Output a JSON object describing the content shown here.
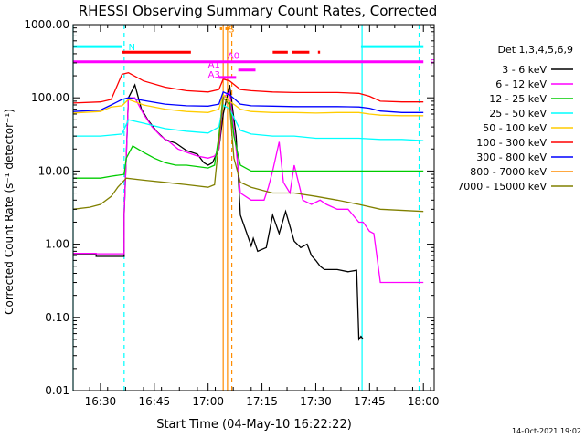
{
  "chart_data": {
    "type": "line",
    "title": "RHESSI Observing Summary Count Rates, Corrected",
    "xlabel": "Start Time (04-May-10 16:22:22)",
    "ylabel": "Corrected Count Rate (s⁻¹ detector⁻¹)",
    "y_scale": "log",
    "ylim": [
      0.01,
      1000
    ],
    "xlim": [
      16.373,
      18.05
    ],
    "x_ticks": [
      16.5,
      16.75,
      17.0,
      17.25,
      17.5,
      17.75,
      18.0
    ],
    "x_tick_labels": [
      "16:30",
      "16:45",
      "17:00",
      "17:15",
      "17:30",
      "17:45",
      "18:00"
    ],
    "y_ticks": [
      0.01,
      0.1,
      1,
      10,
      100,
      1000
    ],
    "y_tick_labels": [
      "0.01",
      "0.10",
      "1.00",
      "10.00",
      "100.00",
      "1000.00"
    ],
    "grid": false,
    "legend_placement": "right",
    "legend_title": "Det 1,3,4,5,6,9",
    "series": [
      {
        "name": "3 - 6 keV",
        "color": "#000000",
        "x": [
          16.373,
          16.48,
          16.48,
          16.61,
          16.61,
          16.63,
          16.66,
          16.69,
          16.72,
          16.76,
          16.8,
          16.85,
          16.9,
          16.95,
          16.98,
          17.0,
          17.02,
          17.05,
          17.07,
          17.1,
          17.13,
          17.15,
          17.2,
          17.21,
          17.23,
          17.27,
          17.3,
          17.33,
          17.36,
          17.4,
          17.43,
          17.46,
          17.48,
          17.5,
          17.52,
          17.54,
          17.56,
          17.6,
          17.65,
          17.69,
          17.7,
          17.71,
          17.72
        ],
        "y": [
          0.72,
          0.72,
          0.68,
          0.68,
          2.5,
          100,
          150,
          70,
          50,
          35,
          27,
          24,
          19,
          17,
          13,
          12,
          13,
          20,
          60,
          150,
          30,
          2.5,
          0.95,
          1.2,
          0.8,
          0.9,
          2.5,
          1.4,
          2.8,
          1.1,
          0.9,
          1.0,
          0.7,
          0.6,
          0.5,
          0.45,
          0.45,
          0.45,
          0.42,
          0.44,
          0.05,
          0.055,
          0.05
        ]
      },
      {
        "name": "6 - 12 keV",
        "color": "#ff00ff",
        "x": [
          16.373,
          16.48,
          16.48,
          16.61,
          16.61,
          16.63,
          16.66,
          16.7,
          16.74,
          16.78,
          16.82,
          16.86,
          16.9,
          16.95,
          17.0,
          17.03,
          17.05,
          17.07,
          17.1,
          17.13,
          17.15,
          17.2,
          17.24,
          17.26,
          17.28,
          17.3,
          17.33,
          17.35,
          17.38,
          17.4,
          17.44,
          17.48,
          17.52,
          17.55,
          17.6,
          17.65,
          17.7,
          17.72,
          17.75,
          17.77,
          17.8,
          18.0
        ],
        "y": [
          0.75,
          0.75,
          0.74,
          0.74,
          2.5,
          100,
          100,
          60,
          40,
          30,
          25,
          20,
          18,
          16,
          15,
          16,
          20,
          100,
          120,
          20,
          5,
          4,
          4,
          4,
          6,
          10,
          25,
          7,
          5,
          12,
          4,
          3.5,
          4,
          3.5,
          3,
          3,
          2,
          2,
          1.5,
          1.4,
          0.3,
          0.3
        ]
      },
      {
        "name": "12 - 25 keV",
        "color": "#00cc00",
        "x": [
          16.373,
          16.5,
          16.55,
          16.61,
          16.62,
          16.65,
          16.7,
          16.75,
          16.8,
          16.85,
          16.9,
          17.0,
          17.03,
          17.05,
          17.07,
          17.1,
          17.12,
          17.15,
          17.2,
          17.3,
          17.4,
          17.5,
          17.6,
          17.7,
          17.8,
          18.0
        ],
        "y": [
          8,
          8,
          8.5,
          9,
          15,
          22,
          18,
          15,
          13,
          12,
          12,
          11,
          12,
          30,
          110,
          90,
          30,
          12,
          10,
          10,
          10,
          10,
          10,
          10,
          10,
          10
        ]
      },
      {
        "name": "25 - 50 keV",
        "color": "#00ffff",
        "x": [
          16.373,
          16.5,
          16.55,
          16.6,
          16.63,
          16.7,
          16.8,
          16.9,
          17.0,
          17.05,
          17.07,
          17.1,
          17.15,
          17.2,
          17.3,
          17.4,
          17.5,
          17.6,
          17.7,
          17.8,
          17.9,
          18.0
        ],
        "y": [
          30,
          30,
          31,
          32,
          50,
          45,
          38,
          35,
          33,
          40,
          80,
          70,
          36,
          32,
          30,
          30,
          28,
          28,
          28,
          27,
          27,
          26
        ]
      },
      {
        "name": "50 - 100 keV",
        "color": "#ffcc00",
        "x": [
          16.373,
          16.5,
          16.55,
          16.6,
          16.63,
          16.7,
          16.8,
          16.9,
          17.0,
          17.05,
          17.07,
          17.1,
          17.15,
          17.2,
          17.3,
          17.4,
          17.5,
          17.6,
          17.7,
          17.75,
          17.8,
          17.9,
          18.0
        ],
        "y": [
          62,
          65,
          75,
          78,
          95,
          80,
          70,
          65,
          63,
          70,
          110,
          90,
          70,
          65,
          63,
          63,
          62,
          63,
          63,
          60,
          58,
          57,
          57
        ]
      },
      {
        "name": "100 - 300 keV",
        "color": "#ff0000",
        "x": [
          16.373,
          16.5,
          16.55,
          16.6,
          16.63,
          16.7,
          16.8,
          16.9,
          17.0,
          17.05,
          17.07,
          17.1,
          17.15,
          17.2,
          17.3,
          17.4,
          17.5,
          17.6,
          17.7,
          17.75,
          17.8,
          17.9,
          18.0
        ],
        "y": [
          85,
          88,
          95,
          210,
          220,
          170,
          140,
          125,
          120,
          130,
          180,
          170,
          130,
          125,
          120,
          118,
          118,
          118,
          115,
          105,
          90,
          88,
          88
        ]
      },
      {
        "name": "300 - 800 keV",
        "color": "#0000ff",
        "x": [
          16.373,
          16.5,
          16.55,
          16.6,
          16.63,
          16.7,
          16.8,
          16.9,
          17.0,
          17.05,
          17.07,
          17.1,
          17.15,
          17.2,
          17.3,
          17.4,
          17.5,
          17.6,
          17.7,
          17.75,
          17.8,
          17.9,
          18.0
        ],
        "y": [
          65,
          68,
          80,
          95,
          100,
          92,
          82,
          78,
          77,
          82,
          120,
          110,
          82,
          78,
          77,
          76,
          76,
          76,
          75,
          72,
          66,
          63,
          63
        ]
      },
      {
        "name": "800 - 7000 keV",
        "color": "#ff8c00",
        "x": [],
        "y": []
      },
      {
        "name": "7000 - 15000 keV",
        "color": "#808000",
        "x": [
          16.373,
          16.45,
          16.5,
          16.55,
          16.58,
          16.62,
          16.7,
          16.8,
          16.9,
          17.0,
          17.03,
          17.05,
          17.07,
          17.1,
          17.12,
          17.15,
          17.2,
          17.3,
          17.4,
          17.5,
          17.6,
          17.7,
          17.8,
          18.0
        ],
        "y": [
          3,
          3.2,
          3.5,
          4.5,
          6,
          8,
          7.5,
          7,
          6.5,
          6,
          6.5,
          25,
          100,
          80,
          15,
          7,
          6,
          5,
          5,
          4.5,
          4,
          3.5,
          3,
          2.8
        ]
      }
    ],
    "flags": [
      {
        "label": "N",
        "color": "#00ffff",
        "y": 500,
        "segments": [
          [
            16.373,
            16.6
          ],
          [
            17.71,
            18.0
          ]
        ]
      },
      {
        "label": "F",
        "color": "#ff00ff",
        "y": 310,
        "segments": [
          [
            16.373,
            18.0
          ]
        ]
      },
      {
        "label": "",
        "color": "#ff0000",
        "y": 420,
        "segments": [
          [
            16.6,
            16.92
          ],
          [
            17.3,
            17.37
          ],
          [
            17.39,
            17.47
          ],
          [
            17.51,
            17.52
          ]
        ]
      },
      {
        "label": "",
        "color": "#ff00ff",
        "y": 240,
        "segments": [
          [
            17.14,
            17.22
          ]
        ]
      },
      {
        "label": "",
        "color": "#ff00ff",
        "y": 190,
        "segments": [
          [
            17.05,
            17.13
          ]
        ]
      },
      {
        "label": "S",
        "color": "#ff8c00",
        "y": 880,
        "segments": [
          [
            17.055,
            17.065
          ],
          [
            17.08,
            17.1
          ]
        ]
      }
    ],
    "flag_labels": [
      {
        "text": "A1",
        "color": "#ff00ff",
        "x": 17.0,
        "y": 260
      },
      {
        "text": "A3",
        "color": "#ff00ff",
        "x": 17.0,
        "y": 190
      },
      {
        "text": "A0",
        "color": "#ff00ff",
        "x": 17.09,
        "y": 340
      }
    ],
    "vlines": [
      {
        "x": 16.373,
        "color": "#00ffff",
        "dash": false
      },
      {
        "x": 16.61,
        "color": "#00ffff",
        "dash": true
      },
      {
        "x": 17.07,
        "color": "#ff8c00",
        "dash": false
      },
      {
        "x": 17.09,
        "color": "#ff8c00",
        "dash": false
      },
      {
        "x": 17.11,
        "color": "#ff8c00",
        "dash": true
      },
      {
        "x": 17.715,
        "color": "#00ffff",
        "dash": false
      },
      {
        "x": 17.98,
        "color": "#00ffff",
        "dash": true
      }
    ],
    "timestamp": "14-Oct-2021 19:02"
  }
}
